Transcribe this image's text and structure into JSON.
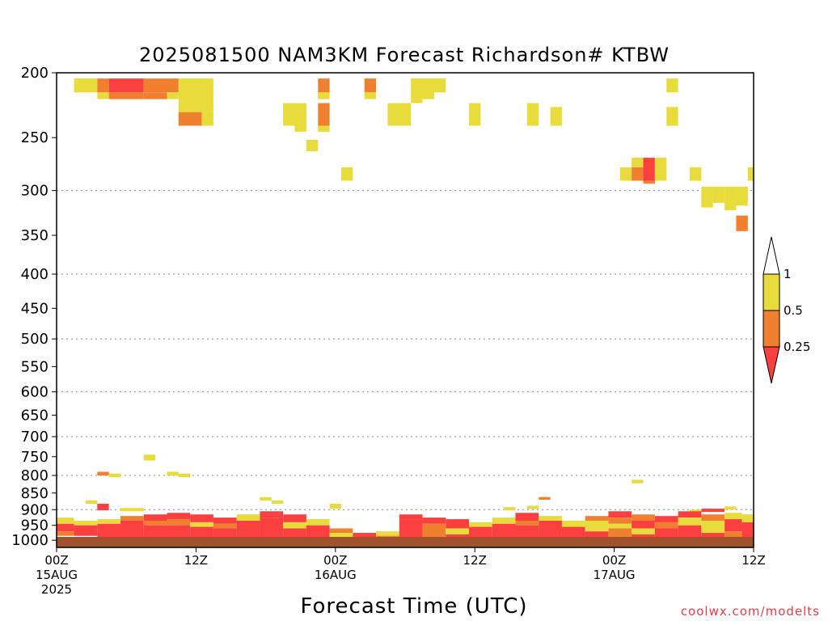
{
  "chart_data": {
    "type": "heatmap",
    "title": "2025081500 NAM3KM Forecast Richardson# KTBW",
    "xlabel": "Forecast Time (UTC)",
    "ylabel": "",
    "credit": "coolwx.com/modelts",
    "x_unit": "forecast hour",
    "x_range": [
      0,
      60
    ],
    "y_unit": "hPa",
    "y_scale": "log-pressure",
    "y_range": [
      1025,
      200
    ],
    "y_ticks": [
      200,
      250,
      300,
      350,
      400,
      450,
      500,
      550,
      600,
      650,
      700,
      750,
      800,
      850,
      900,
      950,
      1000
    ],
    "gridlines_hPa": [
      300,
      400,
      500,
      600,
      700,
      800,
      900
    ],
    "x_ticks": [
      {
        "hour": 0,
        "lines": [
          "00Z",
          "15AUG",
          "2025"
        ]
      },
      {
        "hour": 12,
        "lines": [
          "12Z"
        ]
      },
      {
        "hour": 24,
        "lines": [
          "00Z",
          "16AUG"
        ]
      },
      {
        "hour": 36,
        "lines": [
          "12Z"
        ]
      },
      {
        "hour": 48,
        "lines": [
          "00Z",
          "17AUG"
        ]
      },
      {
        "hour": 60,
        "lines": [
          "12Z"
        ]
      }
    ],
    "legend": {
      "placement": "right",
      "items": [
        {
          "label": "1",
          "color": "#ffffff"
        },
        {
          "label": "0.5",
          "color": "#e8dc3c"
        },
        {
          "label": "0.25",
          "color": "#f08030"
        },
        {
          "label": "",
          "color": "#fc4040"
        }
      ],
      "boundaries": [
        "1",
        "0.5",
        "0.25"
      ]
    },
    "colors": {
      "lt_0_25": "#fc4040",
      "0_25_to_0_5": "#f08030",
      "0_5_to_1": "#e8dc3c",
      "ground": "#a0522d"
    },
    "categories_legend": {
      "1": "0.5-1",
      "2": "0.25-0.5",
      "3": "<0.25"
    },
    "cells_note": "each cell: [hour_start, hour_end, p_top_hPa, p_bottom_hPa, category]",
    "cells": [
      [
        1.5,
        3.5,
        204,
        214,
        1
      ],
      [
        3.5,
        4.5,
        204,
        214,
        2
      ],
      [
        3.5,
        4.5,
        214,
        219,
        1
      ],
      [
        4.5,
        7.5,
        204,
        214,
        3
      ],
      [
        4.5,
        7.5,
        214,
        219,
        2
      ],
      [
        7.5,
        10.5,
        204,
        214,
        2
      ],
      [
        7.5,
        9.5,
        214,
        219,
        2
      ],
      [
        9.5,
        10.5,
        214,
        219,
        1
      ],
      [
        10.5,
        13.5,
        204,
        229,
        1
      ],
      [
        10.5,
        12.5,
        229,
        240,
        2
      ],
      [
        12.5,
        13.5,
        229,
        240,
        1
      ],
      [
        19.5,
        21.5,
        222,
        240,
        1
      ],
      [
        20.5,
        21.5,
        240,
        245,
        1
      ],
      [
        22.5,
        23.5,
        204,
        214,
        2
      ],
      [
        22.5,
        23.5,
        214,
        219,
        1
      ],
      [
        22.5,
        23.5,
        222,
        240,
        2
      ],
      [
        22.5,
        23.5,
        240,
        245,
        1
      ],
      [
        21.5,
        22.5,
        252,
        262,
        1
      ],
      [
        24.5,
        25.5,
        277,
        290,
        1
      ],
      [
        26.5,
        27.5,
        204,
        214,
        2
      ],
      [
        26.5,
        27.5,
        214,
        219,
        1
      ],
      [
        28.5,
        30.5,
        222,
        240,
        1
      ],
      [
        30.5,
        32.5,
        204,
        219,
        1
      ],
      [
        30.5,
        31.5,
        219,
        222,
        1
      ],
      [
        31.5,
        33.5,
        204,
        214,
        1
      ],
      [
        35.5,
        36.5,
        222,
        240,
        1
      ],
      [
        40.5,
        41.5,
        222,
        240,
        1
      ],
      [
        42.5,
        43.5,
        225,
        240,
        1
      ],
      [
        48.5,
        49.5,
        277,
        290,
        1
      ],
      [
        49.5,
        50.5,
        268,
        277,
        1
      ],
      [
        49.5,
        50.5,
        277,
        290,
        2
      ],
      [
        50.5,
        51.5,
        268,
        290,
        3
      ],
      [
        50.5,
        51.5,
        290,
        293,
        2
      ],
      [
        51.5,
        52.5,
        268,
        290,
        1
      ],
      [
        52.5,
        53.5,
        204,
        214,
        1
      ],
      [
        52.5,
        53.5,
        225,
        240,
        1
      ],
      [
        54.5,
        55.5,
        277,
        290,
        1
      ],
      [
        59.5,
        60,
        277,
        290,
        1
      ],
      [
        55.5,
        56.5,
        296,
        318,
        1
      ],
      [
        56.5,
        57.5,
        296,
        313,
        1
      ],
      [
        57.5,
        58.5,
        296,
        321,
        1
      ],
      [
        58.5,
        59.5,
        296,
        316,
        1
      ],
      [
        58.5,
        59.5,
        327,
        345,
        2
      ],
      [
        7.5,
        8.5,
        745,
        760,
        1
      ],
      [
        3.5,
        4.5,
        790,
        800,
        2
      ],
      [
        4.5,
        5.5,
        795,
        805,
        1
      ],
      [
        9.5,
        10.5,
        790,
        800,
        1
      ],
      [
        10.5,
        11.5,
        795,
        805,
        1
      ],
      [
        49.5,
        50.5,
        812,
        822,
        1
      ],
      [
        17.5,
        18.5,
        862,
        872,
        1
      ],
      [
        18.5,
        19.5,
        872,
        882,
        1
      ],
      [
        23.5,
        24.5,
        882,
        897,
        1
      ],
      [
        41.5,
        42.5,
        862,
        870,
        2
      ],
      [
        3.5,
        4.5,
        882,
        902,
        3
      ],
      [
        2.5,
        3.5,
        872,
        882,
        1
      ],
      [
        5.5,
        7.5,
        895,
        905,
        1
      ],
      [
        38.5,
        39.5,
        892,
        902,
        1
      ],
      [
        40.5,
        41.5,
        888,
        898,
        1
      ],
      [
        55.5,
        57.5,
        897,
        907,
        3
      ],
      [
        54.5,
        55.5,
        900,
        910,
        1
      ],
      [
        57.5,
        58.5,
        890,
        900,
        1
      ],
      [
        0,
        1.5,
        925,
        945,
        1
      ],
      [
        0,
        1.5,
        945,
        970,
        3
      ],
      [
        0,
        1.5,
        970,
        985,
        2
      ],
      [
        1.5,
        3.5,
        935,
        950,
        1
      ],
      [
        1.5,
        3.5,
        950,
        985,
        3
      ],
      [
        3.5,
        5.5,
        930,
        945,
        1
      ],
      [
        3.5,
        5.5,
        945,
        990,
        3
      ],
      [
        5.5,
        7.5,
        920,
        935,
        2
      ],
      [
        5.5,
        7.5,
        935,
        990,
        3
      ],
      [
        7.5,
        9.5,
        915,
        935,
        3
      ],
      [
        7.5,
        9.5,
        935,
        950,
        2
      ],
      [
        7.5,
        9.5,
        950,
        990,
        3
      ],
      [
        9.5,
        11.5,
        910,
        930,
        3
      ],
      [
        9.5,
        11.5,
        930,
        950,
        2
      ],
      [
        9.5,
        11.5,
        950,
        995,
        3
      ],
      [
        11.5,
        13.5,
        915,
        940,
        3
      ],
      [
        11.5,
        13.5,
        940,
        955,
        1
      ],
      [
        11.5,
        13.5,
        955,
        995,
        3
      ],
      [
        13.5,
        15.5,
        925,
        945,
        3
      ],
      [
        13.5,
        15.5,
        945,
        960,
        2
      ],
      [
        13.5,
        15.5,
        960,
        995,
        3
      ],
      [
        15.5,
        17.5,
        915,
        935,
        1
      ],
      [
        15.5,
        17.5,
        935,
        995,
        3
      ],
      [
        17.5,
        19.5,
        905,
        925,
        3
      ],
      [
        17.5,
        19.5,
        925,
        995,
        3
      ],
      [
        19.5,
        21.5,
        915,
        940,
        3
      ],
      [
        19.5,
        21.5,
        940,
        960,
        1
      ],
      [
        19.5,
        21.5,
        960,
        995,
        3
      ],
      [
        21.5,
        23.5,
        930,
        950,
        1
      ],
      [
        21.5,
        23.5,
        950,
        995,
        3
      ],
      [
        23.5,
        25.5,
        960,
        975,
        2
      ],
      [
        23.5,
        25.5,
        975,
        995,
        1
      ],
      [
        25.5,
        27.5,
        975,
        990,
        3
      ],
      [
        27.5,
        29.5,
        970,
        985,
        1
      ],
      [
        27.5,
        29.5,
        985,
        995,
        2
      ],
      [
        29.5,
        31.5,
        915,
        930,
        3
      ],
      [
        29.5,
        31.5,
        930,
        990,
        3
      ],
      [
        31.5,
        33.5,
        925,
        945,
        3
      ],
      [
        31.5,
        33.5,
        945,
        990,
        2
      ],
      [
        33.5,
        35.5,
        930,
        960,
        3
      ],
      [
        33.5,
        35.5,
        960,
        980,
        1
      ],
      [
        33.5,
        35.5,
        980,
        995,
        3
      ],
      [
        35.5,
        37.5,
        940,
        955,
        1
      ],
      [
        35.5,
        37.5,
        955,
        995,
        3
      ],
      [
        37.5,
        39.5,
        925,
        945,
        1
      ],
      [
        37.5,
        39.5,
        945,
        995,
        3
      ],
      [
        39.5,
        41.5,
        910,
        935,
        3
      ],
      [
        39.5,
        41.5,
        935,
        950,
        2
      ],
      [
        39.5,
        41.5,
        950,
        995,
        3
      ],
      [
        41.5,
        43.5,
        920,
        935,
        1
      ],
      [
        41.5,
        43.5,
        935,
        995,
        3
      ],
      [
        43.5,
        45.5,
        935,
        955,
        1
      ],
      [
        43.5,
        45.5,
        955,
        995,
        3
      ],
      [
        45.5,
        47.5,
        920,
        935,
        2
      ],
      [
        45.5,
        47.5,
        935,
        970,
        1
      ],
      [
        45.5,
        47.5,
        970,
        995,
        3
      ],
      [
        47.5,
        49.5,
        905,
        925,
        3
      ],
      [
        47.5,
        49.5,
        925,
        945,
        2
      ],
      [
        47.5,
        49.5,
        945,
        960,
        1
      ],
      [
        47.5,
        49.5,
        960,
        995,
        2
      ],
      [
        49.5,
        51.5,
        915,
        935,
        2
      ],
      [
        49.5,
        51.5,
        935,
        960,
        3
      ],
      [
        49.5,
        51.5,
        960,
        980,
        1
      ],
      [
        49.5,
        51.5,
        980,
        995,
        3
      ],
      [
        51.5,
        53.5,
        920,
        940,
        3
      ],
      [
        51.5,
        53.5,
        940,
        960,
        2
      ],
      [
        51.5,
        53.5,
        960,
        995,
        3
      ],
      [
        53.5,
        55.5,
        905,
        925,
        3
      ],
      [
        53.5,
        55.5,
        925,
        950,
        1
      ],
      [
        53.5,
        55.5,
        950,
        995,
        3
      ],
      [
        55.5,
        57.5,
        915,
        935,
        2
      ],
      [
        55.5,
        57.5,
        935,
        975,
        1
      ],
      [
        55.5,
        57.5,
        975,
        995,
        3
      ],
      [
        57.5,
        59,
        910,
        930,
        1
      ],
      [
        57.5,
        59,
        930,
        970,
        3
      ],
      [
        57.5,
        59,
        970,
        995,
        2
      ],
      [
        59,
        60,
        915,
        940,
        1
      ],
      [
        59,
        60,
        940,
        995,
        3
      ]
    ]
  }
}
